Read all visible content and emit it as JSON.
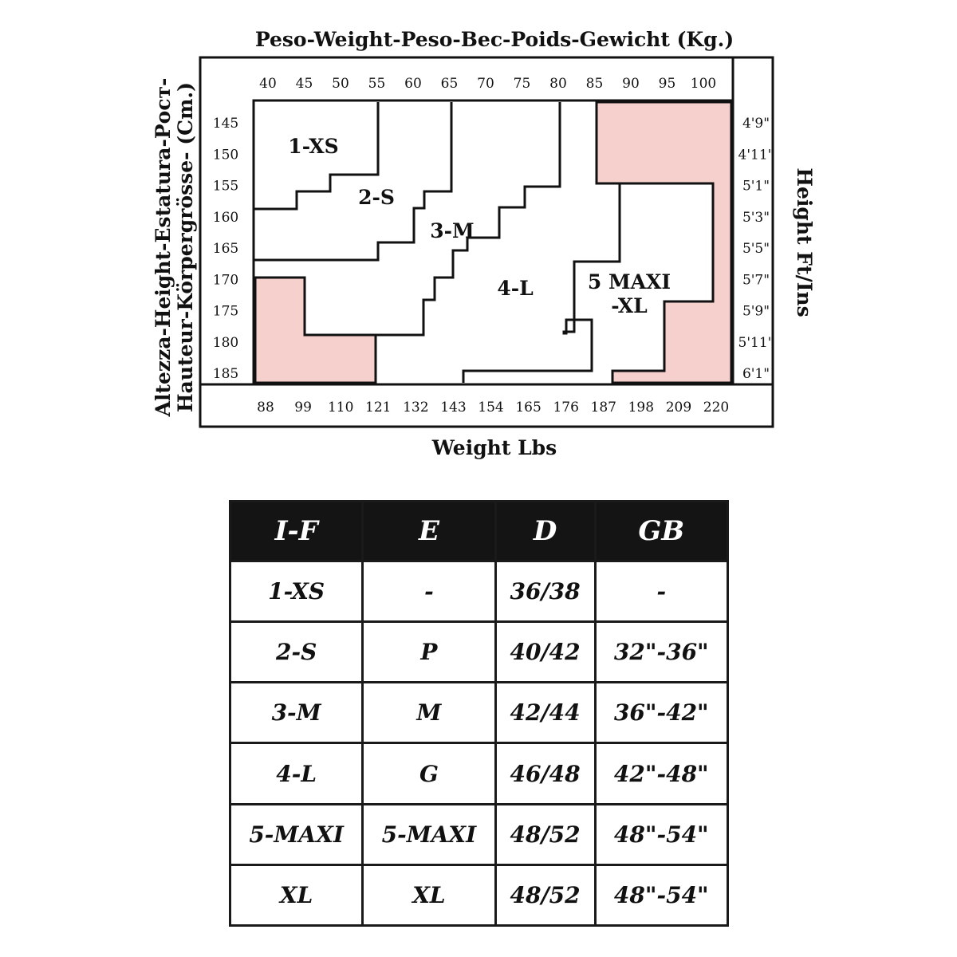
{
  "chart_data": {
    "type": "heatmap",
    "title": "Peso-Weight-Peso-Bec-Poids-Gewicht (Kg.)",
    "xlabel": "Weight Lbs",
    "ylabel": "Altezza-Height-Estatura-Рост-\nHauteur-Körpergrösse- (Cm.)",
    "y2label": "Height Ft/Ins",
    "x_kg_ticks": [
      "40",
      "45",
      "50",
      "55",
      "60",
      "65",
      "70",
      "75",
      "80",
      "85",
      "90",
      "95",
      "100"
    ],
    "x_lbs_ticks": [
      "88",
      "99",
      "110",
      "121",
      "132",
      "143",
      "154",
      "165",
      "176",
      "187",
      "198",
      "209",
      "220"
    ],
    "y_cm_ticks": [
      "145",
      "150",
      "155",
      "160",
      "165",
      "170",
      "175",
      "180",
      "185"
    ],
    "y_ftin_ticks": [
      "4'9\"",
      "4'11\"",
      "5'1\"",
      "5'3\"",
      "5'5\"",
      "5'7\"",
      "5'9\"",
      "5'11\"",
      "6'1\""
    ],
    "xlim_kg": [
      40,
      100
    ],
    "ylim_cm": [
      145,
      185
    ],
    "zones": [
      {
        "name": "1-XS",
        "label_lines": [
          "1-XS"
        ]
      },
      {
        "name": "2-S",
        "label_lines": [
          "2-S"
        ]
      },
      {
        "name": "3-M",
        "label_lines": [
          "3-M"
        ]
      },
      {
        "name": "4-L",
        "label_lines": [
          "4-L"
        ]
      },
      {
        "name": "5 MAXI -XL",
        "label_lines": [
          "5 MAXI",
          "-XL"
        ]
      }
    ],
    "not_available_color": "#f6d0cc"
  },
  "size_table": {
    "headers": [
      "I-F",
      "E",
      "D",
      "GB"
    ],
    "rows": [
      [
        "1-XS",
        "-",
        "36/38",
        "-"
      ],
      [
        "2-S",
        "P",
        "40/42",
        "32\"-36\""
      ],
      [
        "3-M",
        "M",
        "42/44",
        "36\"-42\""
      ],
      [
        "4-L",
        "G",
        "46/48",
        "42\"-48\""
      ],
      [
        "5-MAXI",
        "5-MAXI",
        "48/52",
        "48\"-54\""
      ],
      [
        "XL",
        "XL",
        "48/52",
        "48\"-54\""
      ]
    ]
  }
}
